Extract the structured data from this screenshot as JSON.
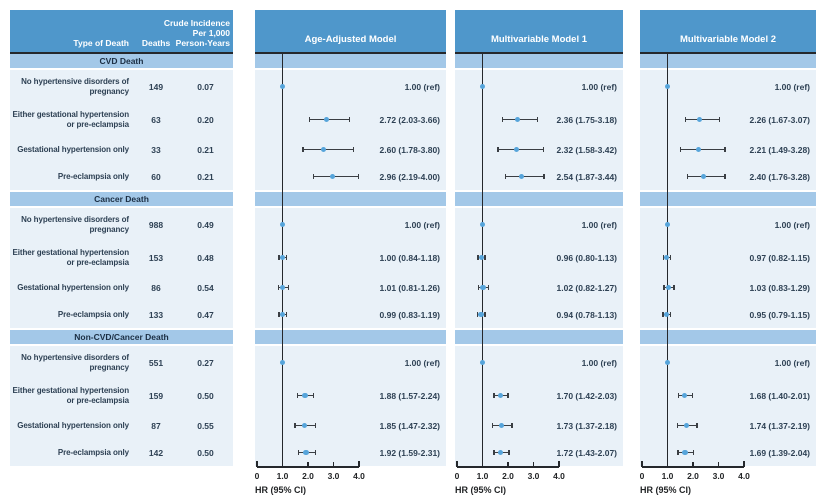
{
  "colors": {
    "header_blue": "#4f97cb",
    "band_blue": "#a3c8e8",
    "row_blue": "#e9f1f8",
    "dot_blue": "#56a4da",
    "line_dark": "#25282c",
    "ink": "#2e4154",
    "band_ink": "#1b2e43"
  },
  "table": {
    "header": {
      "type_of_death": "Type of Death",
      "deaths": "Deaths",
      "incidence_lines": [
        "Crude Incidence",
        "Per 1,000",
        "Person-Years"
      ]
    },
    "sections": [
      {
        "title": "CVD Death",
        "rows": [
          {
            "label": "No hypertensive disorders of pregnancy",
            "deaths": "149",
            "incidence": "0.07"
          },
          {
            "label": "Either gestational hypertension or pre-eclampsia",
            "deaths": "63",
            "incidence": "0.20"
          },
          {
            "label": "Gestational hypertension only",
            "deaths": "33",
            "incidence": "0.21"
          },
          {
            "label": "Pre-eclampsia only",
            "deaths": "60",
            "incidence": "0.21"
          }
        ]
      },
      {
        "title": "Cancer Death",
        "rows": [
          {
            "label": "No hypertensive disorders of pregnancy",
            "deaths": "988",
            "incidence": "0.49"
          },
          {
            "label": "Either gestational hypertension or pre-eclampsia",
            "deaths": "153",
            "incidence": "0.48"
          },
          {
            "label": "Gestational hypertension only",
            "deaths": "86",
            "incidence": "0.54"
          },
          {
            "label": "Pre-eclampsia only",
            "deaths": "133",
            "incidence": "0.47"
          }
        ]
      },
      {
        "title": "Non-CVD/Cancer Death",
        "rows": [
          {
            "label": "No hypertensive disorders of pregnancy",
            "deaths": "551",
            "incidence": "0.27"
          },
          {
            "label": "Either gestational hypertension or pre-eclampsia",
            "deaths": "159",
            "incidence": "0.50"
          },
          {
            "label": "Gestational hypertension only",
            "deaths": "87",
            "incidence": "0.55"
          },
          {
            "label": "Pre-eclampsia only",
            "deaths": "142",
            "incidence": "0.50"
          }
        ]
      }
    ]
  },
  "chart_data": {
    "type": "forest",
    "axis": {
      "min": 0,
      "max": 4,
      "ref_value": 1.0,
      "xlabel": "HR (95% CI)",
      "ticks": [
        {
          "v": 0,
          "label": "0"
        },
        {
          "v": 1,
          "label": "1.0"
        },
        {
          "v": 2,
          "label": "2.0"
        },
        {
          "v": 3,
          "label": "3.0"
        },
        {
          "v": 4,
          "label": "4.0"
        }
      ]
    },
    "group_titles": [
      "CVD Death",
      "Cancer Death",
      "Non-CVD/Cancer Death"
    ],
    "row_labels": [
      "No hypertensive disorders of pregnancy",
      "Either gestational hypertension or pre-eclampsia",
      "Gestational hypertension only",
      "Pre-eclampsia only"
    ],
    "panels": [
      {
        "title": "Age-Adjusted Model",
        "sections": [
          [
            {
              "hr": 1.0,
              "ref": true,
              "label": "1.00 (ref)"
            },
            {
              "hr": 2.72,
              "lo": 2.03,
              "hi": 3.66,
              "label": "2.72 (2.03-3.66)"
            },
            {
              "hr": 2.6,
              "lo": 1.78,
              "hi": 3.8,
              "label": "2.60 (1.78-3.80)"
            },
            {
              "hr": 2.96,
              "lo": 2.19,
              "hi": 4.0,
              "label": "2.96 (2.19-4.00)"
            }
          ],
          [
            {
              "hr": 1.0,
              "ref": true,
              "label": "1.00 (ref)"
            },
            {
              "hr": 1.0,
              "lo": 0.84,
              "hi": 1.18,
              "label": "1.00 (0.84-1.18)"
            },
            {
              "hr": 1.01,
              "lo": 0.81,
              "hi": 1.26,
              "label": "1.01 (0.81-1.26)"
            },
            {
              "hr": 0.99,
              "lo": 0.83,
              "hi": 1.19,
              "label": "0.99 (0.83-1.19)"
            }
          ],
          [
            {
              "hr": 1.0,
              "ref": true,
              "label": "1.00 (ref)"
            },
            {
              "hr": 1.88,
              "lo": 1.57,
              "hi": 2.24,
              "label": "1.88 (1.57-2.24)"
            },
            {
              "hr": 1.85,
              "lo": 1.47,
              "hi": 2.32,
              "label": "1.85 (1.47-2.32)"
            },
            {
              "hr": 1.92,
              "lo": 1.59,
              "hi": 2.31,
              "label": "1.92 (1.59-2.31)"
            }
          ]
        ]
      },
      {
        "title": "Multivariable Model 1",
        "sections": [
          [
            {
              "hr": 1.0,
              "ref": true,
              "label": "1.00 (ref)"
            },
            {
              "hr": 2.36,
              "lo": 1.75,
              "hi": 3.18,
              "label": "2.36 (1.75-3.18)"
            },
            {
              "hr": 2.32,
              "lo": 1.58,
              "hi": 3.42,
              "label": "2.32 (1.58-3.42)"
            },
            {
              "hr": 2.54,
              "lo": 1.87,
              "hi": 3.44,
              "label": "2.54 (1.87-3.44)"
            }
          ],
          [
            {
              "hr": 1.0,
              "ref": true,
              "label": "1.00 (ref)"
            },
            {
              "hr": 0.96,
              "lo": 0.8,
              "hi": 1.13,
              "label": "0.96 (0.80-1.13)"
            },
            {
              "hr": 1.02,
              "lo": 0.82,
              "hi": 1.27,
              "label": "1.02 (0.82-1.27)"
            },
            {
              "hr": 0.94,
              "lo": 0.78,
              "hi": 1.13,
              "label": "0.94 (0.78-1.13)"
            }
          ],
          [
            {
              "hr": 1.0,
              "ref": true,
              "label": "1.00 (ref)"
            },
            {
              "hr": 1.7,
              "lo": 1.42,
              "hi": 2.03,
              "label": "1.70 (1.42-2.03)"
            },
            {
              "hr": 1.73,
              "lo": 1.37,
              "hi": 2.18,
              "label": "1.73 (1.37-2.18)"
            },
            {
              "hr": 1.72,
              "lo": 1.43,
              "hi": 2.07,
              "label": "1.72 (1.43-2.07)"
            }
          ]
        ]
      },
      {
        "title": "Multivariable Model 2",
        "sections": [
          [
            {
              "hr": 1.0,
              "ref": true,
              "label": "1.00 (ref)"
            },
            {
              "hr": 2.26,
              "lo": 1.67,
              "hi": 3.07,
              "label": "2.26 (1.67-3.07)"
            },
            {
              "hr": 2.21,
              "lo": 1.49,
              "hi": 3.28,
              "label": "2.21 (1.49-3.28)"
            },
            {
              "hr": 2.4,
              "lo": 1.76,
              "hi": 3.28,
              "label": "2.40 (1.76-3.28)"
            }
          ],
          [
            {
              "hr": 1.0,
              "ref": true,
              "label": "1.00 (ref)"
            },
            {
              "hr": 0.97,
              "lo": 0.82,
              "hi": 1.15,
              "label": "0.97 (0.82-1.15)"
            },
            {
              "hr": 1.03,
              "lo": 0.83,
              "hi": 1.29,
              "label": "1.03 (0.83-1.29)"
            },
            {
              "hr": 0.95,
              "lo": 0.79,
              "hi": 1.15,
              "label": "0.95 (0.79-1.15)"
            }
          ],
          [
            {
              "hr": 1.0,
              "ref": true,
              "label": "1.00 (ref)"
            },
            {
              "hr": 1.68,
              "lo": 1.4,
              "hi": 2.01,
              "label": "1.68 (1.40-2.01)"
            },
            {
              "hr": 1.74,
              "lo": 1.37,
              "hi": 2.19,
              "label": "1.74 (1.37-2.19)"
            },
            {
              "hr": 1.69,
              "lo": 1.39,
              "hi": 2.04,
              "label": "1.69 (1.39-2.04)"
            }
          ]
        ]
      }
    ]
  }
}
